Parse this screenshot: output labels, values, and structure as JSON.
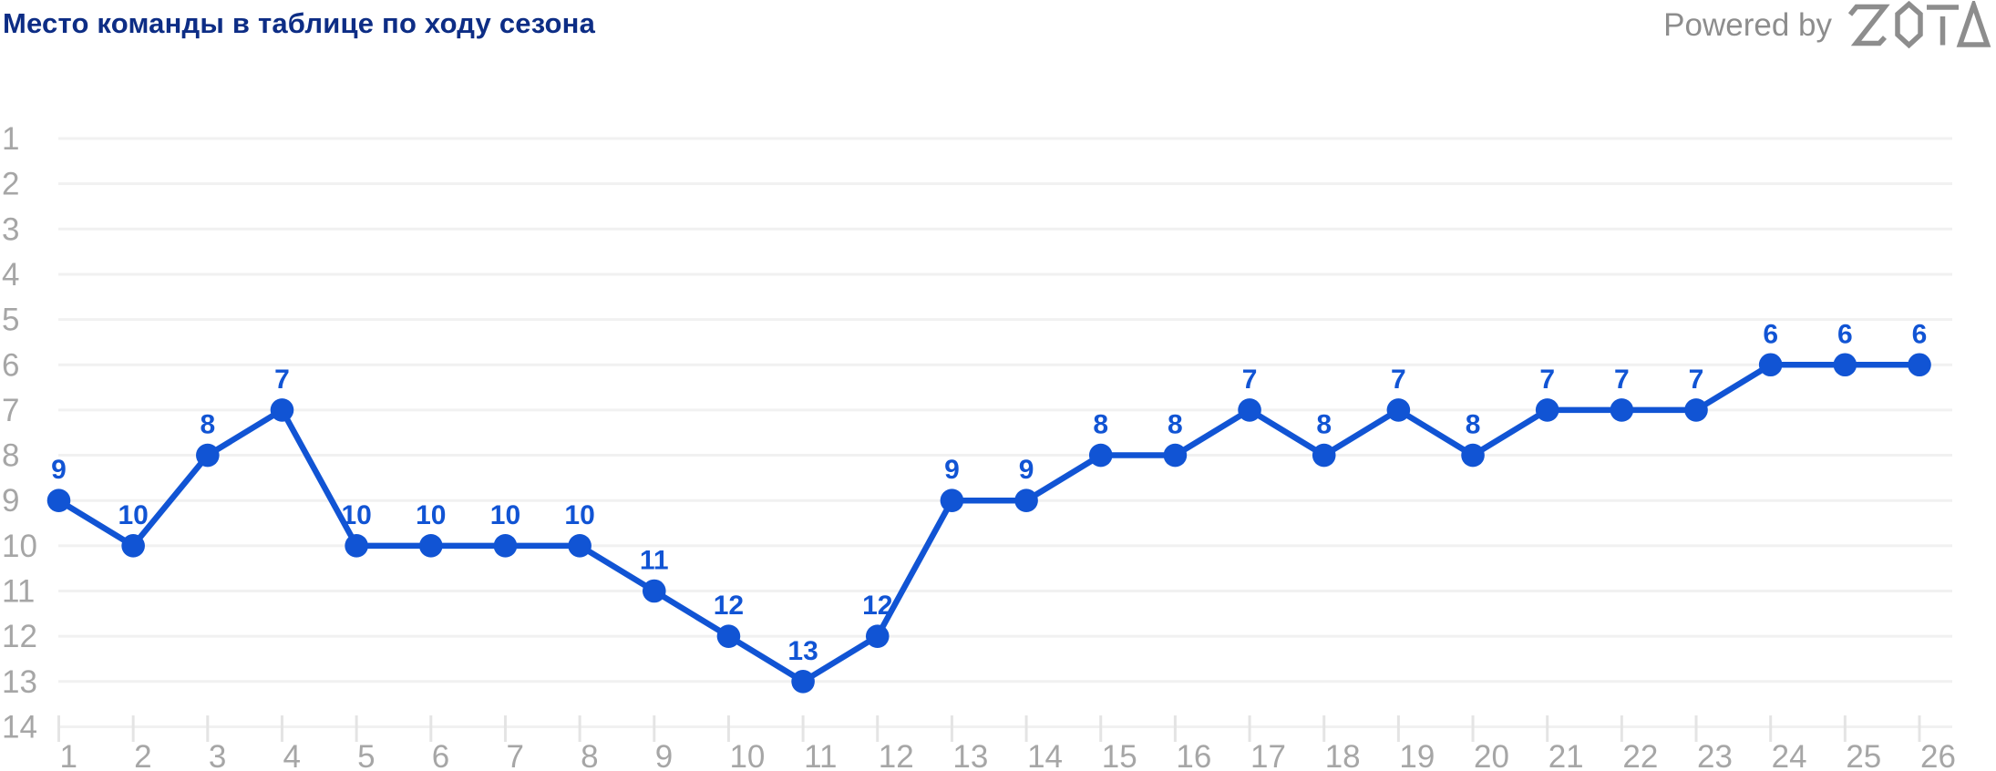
{
  "header": {
    "title": "Место команды в таблице по ходу сезона",
    "powered_by": "Powered by",
    "brand": "SOTA"
  },
  "colors": {
    "background": "#ffffff",
    "title": "#0d2d85",
    "line": "#1154d4",
    "point": "#1154d4",
    "data_label": "#1154d4",
    "axis_label": "#a6a6a6",
    "gridline": "#f1f1f1",
    "tick": "#e4e4e4",
    "powered_by": "#8d8d8d"
  },
  "chart_data": {
    "type": "line",
    "title": "Место команды в таблице по ходу сезона",
    "xlabel": "",
    "ylabel": "",
    "x": [
      1,
      2,
      3,
      4,
      5,
      6,
      7,
      8,
      9,
      10,
      11,
      12,
      13,
      14,
      15,
      16,
      17,
      18,
      19,
      20,
      21,
      22,
      23,
      24,
      25,
      26
    ],
    "series": [
      {
        "name": "Место команды",
        "values": [
          9,
          10,
          8,
          7,
          10,
          10,
          10,
          10,
          11,
          12,
          13,
          12,
          9,
          9,
          8,
          8,
          7,
          8,
          7,
          8,
          7,
          7,
          7,
          6,
          6,
          6
        ]
      }
    ],
    "y_ticks": [
      1,
      2,
      3,
      4,
      5,
      6,
      7,
      8,
      9,
      10,
      11,
      12,
      13,
      14
    ],
    "ylim": [
      1,
      14
    ],
    "y_axis_inverted": true,
    "grid": "horizontal",
    "legend": "none",
    "data_labels": true,
    "marker": "circle"
  }
}
